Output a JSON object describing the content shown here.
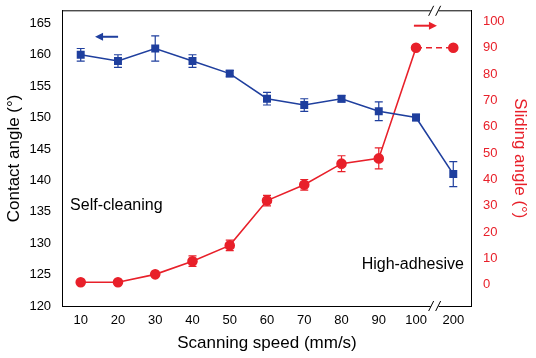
{
  "chart_data": {
    "type": "line",
    "x_label": "Scanning speed (mm/s)",
    "y_label": "Contact angle (°)",
    "y2_label": "Sliding angle (°)",
    "categories": [
      10,
      20,
      30,
      40,
      50,
      60,
      70,
      80,
      90,
      100,
      200
    ],
    "series": [
      {
        "name": "Contact angle",
        "color": "#1f3f9e",
        "marker": "square",
        "axis": "y",
        "values": [
          160,
          159,
          161,
          159,
          157,
          153,
          152,
          153,
          151,
          150,
          141
        ],
        "errors": [
          1,
          1,
          2,
          1,
          0.5,
          1,
          1,
          0.5,
          1.5,
          0.5,
          2
        ]
      },
      {
        "name": "Sliding angle",
        "color": "#e8202a",
        "marker": "circle",
        "axis": "y2",
        "values": [
          1,
          1,
          4,
          9,
          15,
          32,
          38,
          46,
          48,
          90,
          90
        ],
        "errors": [
          0,
          0,
          0,
          2,
          2,
          2,
          2,
          3,
          4,
          0,
          0
        ]
      }
    ],
    "ylim": [
      120,
      167
    ],
    "yticks": [
      120,
      125,
      130,
      135,
      140,
      145,
      150,
      155,
      160,
      165
    ],
    "y2lim": [
      -8,
      104
    ],
    "y2ticks": [
      0,
      10,
      20,
      30,
      40,
      50,
      60,
      70,
      80,
      90,
      100
    ],
    "annotations": [
      "Self-cleaning",
      "High-adhesive"
    ],
    "grid": false
  }
}
